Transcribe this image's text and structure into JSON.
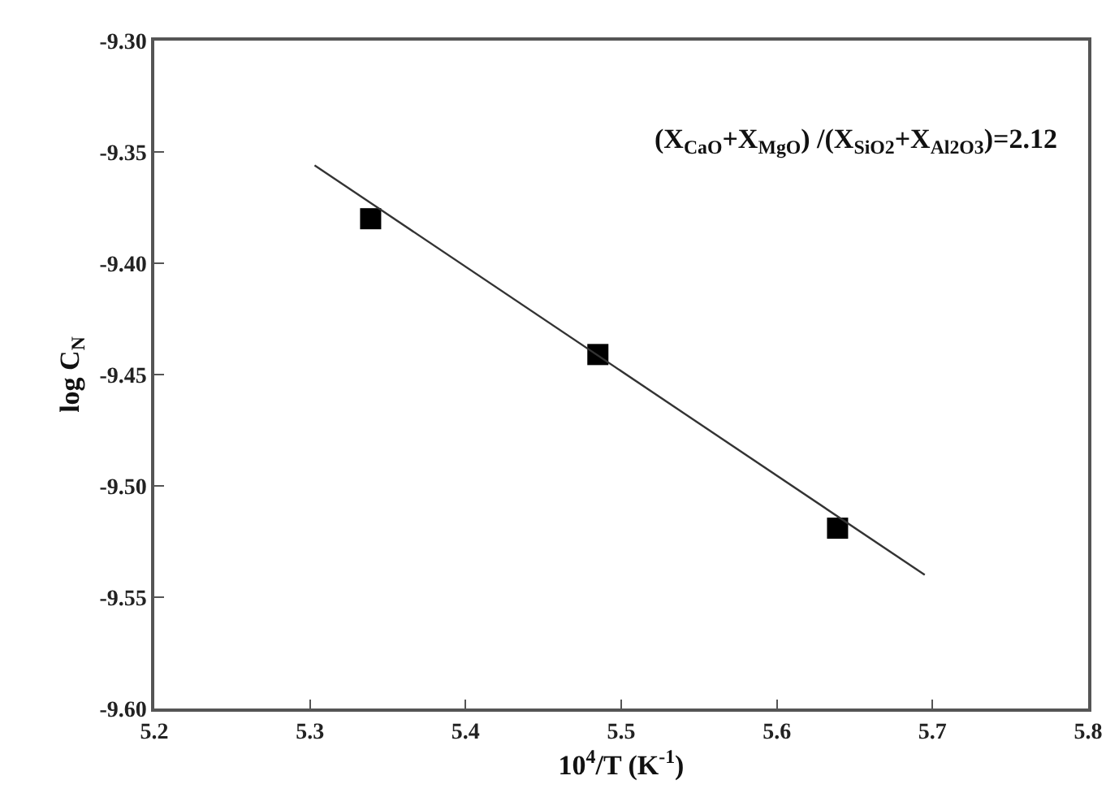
{
  "chart_data": {
    "type": "scatter",
    "xlabel": "10$^{4}$/T (K$^{-1}$)",
    "ylabel": "log C$_{N}$",
    "annotations": [
      "(X$_{CaO}$+X$_{MgO}$) /(X$_{SiO2}$+X$_{Al2O3}$)=2.12"
    ],
    "series": [
      {
        "color": "#000000",
        "marker": "square",
        "x": [
          5.339,
          5.485,
          5.639
        ],
        "values": [
          -9.38,
          -9.441,
          -9.519
        ]
      },
      {
        "type": "line",
        "color": "#333333",
        "marker": "none",
        "line_style": "solid",
        "x": [
          5.303,
          5.695
        ],
        "values": [
          -9.356,
          -9.54
        ]
      }
    ],
    "xlim": [
      5.2,
      5.8
    ],
    "xticks": [
      5.2,
      5.3,
      5.4,
      5.5,
      5.6,
      5.7,
      5.8
    ],
    "ylim": [
      -9.6,
      -9.3
    ],
    "yticks": [
      {
        "value": -9.6,
        "label": "-9.60"
      },
      -9.55,
      {
        "value": -9.5,
        "label": "-9.50"
      },
      -9.45,
      {
        "value": -9.4,
        "label": "-9.40"
      },
      -9.35,
      {
        "value": -9.3,
        "label": "-9.30"
      }
    ]
  }
}
